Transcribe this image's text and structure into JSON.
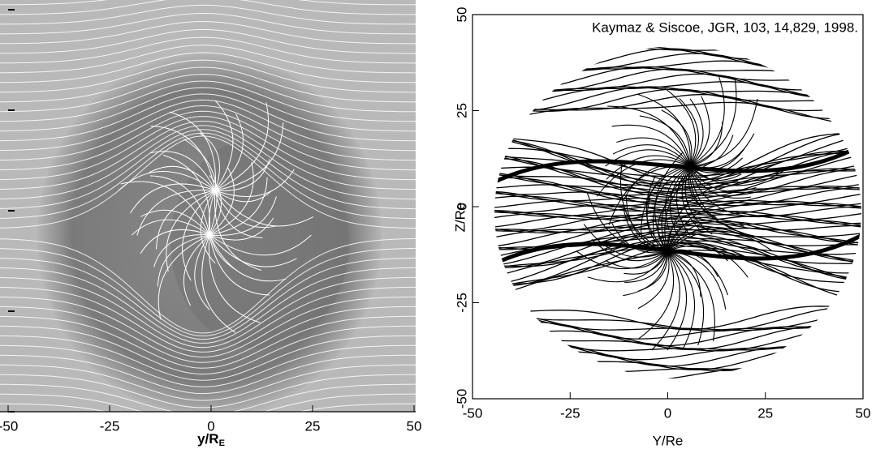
{
  "chart_data": [
    {
      "type": "streamline",
      "xlabel": {
        "text": "y/R",
        "subscript": "E"
      },
      "xlim": [
        -50,
        50
      ],
      "xticks": [
        -50,
        -25,
        0,
        25,
        50
      ]
    },
    {
      "type": "streamline",
      "annotation": "Kaymaz & Siscoe, JGR, 103, 14,829, 1998.",
      "xlabel": "Y/Re",
      "ylabel": "Z/Re",
      "xlim": [
        -50,
        50
      ],
      "xticks": [
        -50,
        -25,
        0,
        25,
        50
      ],
      "ylim": [
        -50,
        50
      ],
      "yticks": [
        -50,
        -25,
        0,
        25,
        50
      ]
    }
  ]
}
